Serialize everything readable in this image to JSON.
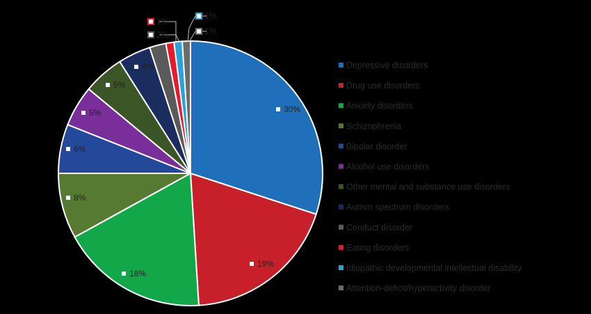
{
  "chart_data": {
    "type": "pie",
    "legend_position": "right",
    "slices": [
      {
        "name": "Depressive disorders",
        "value": 30,
        "label": "30%",
        "color": "#1f6fbb"
      },
      {
        "name": "Drug use disorders",
        "value": 19,
        "label": "19%",
        "color": "#c8202a"
      },
      {
        "name": "Anxiety disorders",
        "value": 18,
        "label": "18%",
        "color": "#12a84a"
      },
      {
        "name": "Schizophrenia",
        "value": 8,
        "label": "8%",
        "color": "#577a33"
      },
      {
        "name": "Bipolar disorder",
        "value": 6,
        "label": "6%",
        "color": "#25499a"
      },
      {
        "name": "Alcohol use disorders",
        "value": 5,
        "label": "5%",
        "color": "#7a2e9a"
      },
      {
        "name": "Other mental and substance use disorders",
        "value": 5,
        "label": "5%",
        "color": "#3b5526"
      },
      {
        "name": "Autism spectrum disorders",
        "value": 4,
        "label": "4%",
        "color": "#1a2d5e"
      },
      {
        "name": "Conduct disorder",
        "value": 2,
        "label": "2%",
        "color": "#5a5a5a"
      },
      {
        "name": "Eating disorders",
        "value": 1,
        "label": "1%",
        "color": "#e8192c"
      },
      {
        "name": "Idiopathic developmental intellectual disability",
        "value": 1,
        "label": "1%",
        "color": "#2aa2d6"
      },
      {
        "name": "Attention-deficit/hyperactivity disorder",
        "value": 1,
        "label": "1%",
        "color": "#6b6b6b"
      }
    ]
  }
}
